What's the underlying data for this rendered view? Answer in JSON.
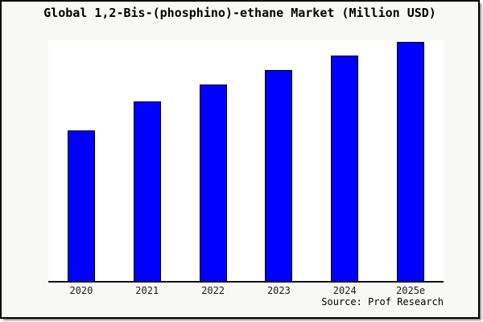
{
  "window": {
    "background_color": "#f8f8f6",
    "border_color": "#000000",
    "plot_background_color": "#ffffff"
  },
  "chart_data": {
    "type": "bar",
    "title": "Global 1,2-Bis-(phosphino)-ethane Market (Million USD)",
    "categories": [
      "2020",
      "2021",
      "2022",
      "2023",
      "2024",
      "2025e"
    ],
    "values": [
      63,
      75,
      82,
      88,
      94,
      100
    ],
    "values_note": "relative index estimated from bar heights; no y-axis tick labels are shown, tallest bar (2025e) = 100",
    "xlabel": "",
    "ylabel": "",
    "ylim": [
      0,
      100.5
    ],
    "grid": false,
    "legend_position": "none",
    "y_axis_visible": false,
    "x_axis_line_color": "#111111",
    "bar_color": "#0000ff",
    "bar_border_color": "#000000",
    "source_label": "Source: Prof Research"
  }
}
